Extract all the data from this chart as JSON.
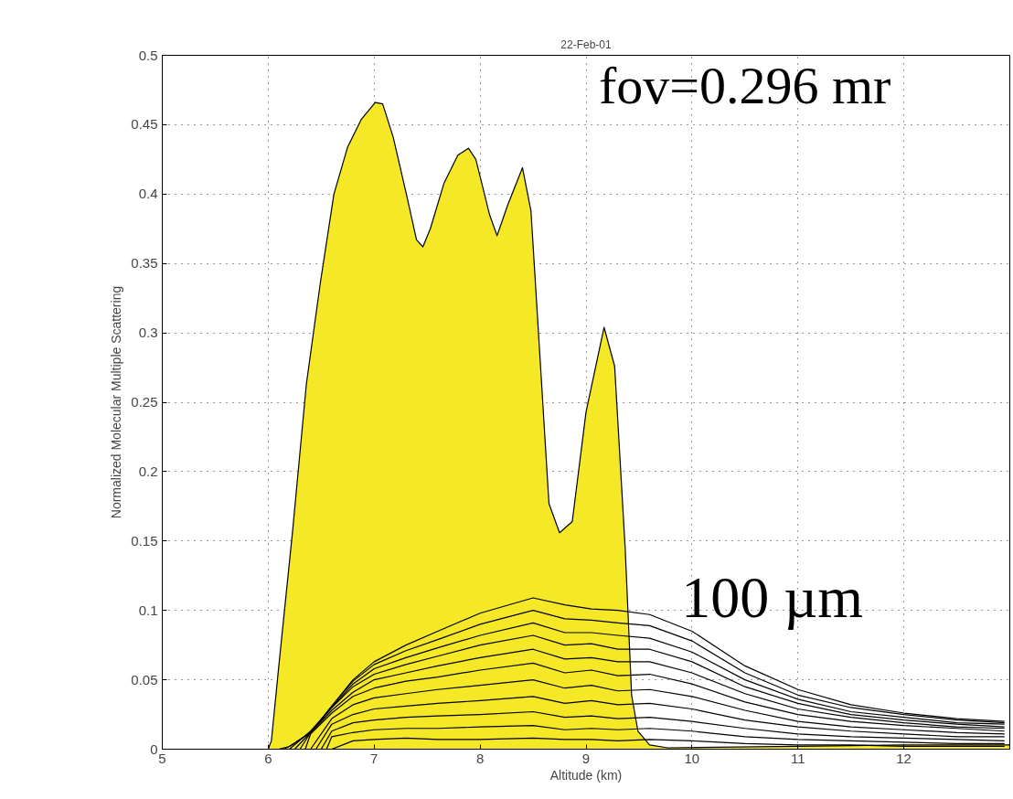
{
  "chart_data": {
    "type": "line",
    "title": "22-Feb-01",
    "xlabel": "Altitude (km)",
    "ylabel": "Normalized Molecular Multiple Scattering",
    "annotations": [
      "fov=0.296 mr",
      "100 µm"
    ],
    "xlim": [
      5,
      13
    ],
    "ylim": [
      0,
      0.5
    ],
    "xticks": [
      5,
      6,
      7,
      8,
      9,
      10,
      11,
      12
    ],
    "yticks": [
      0,
      0.05,
      0.1,
      0.15,
      0.2,
      0.25,
      0.3,
      0.35,
      0.4,
      0.45,
      0.5
    ],
    "grid": true,
    "marker": "none",
    "line_style": "solid",
    "series": [
      {
        "type": "area",
        "color": "#f5e826",
        "x": [
          5,
          6.0,
          6.03,
          6.1,
          6.23,
          6.36,
          6.49,
          6.62,
          6.75,
          6.88,
          7.01,
          7.08,
          7.18,
          7.31,
          7.4,
          7.46,
          7.53,
          7.66,
          7.79,
          7.89,
          7.96,
          8.09,
          8.16,
          8.26,
          8.4,
          8.48,
          8.56,
          8.65,
          8.75,
          8.87,
          9.0,
          9.17,
          9.27,
          9.37,
          9.43,
          9.49,
          9.6,
          9.77,
          11,
          12,
          13
        ],
        "values": [
          0,
          0,
          0.006,
          0.06,
          0.157,
          0.263,
          0.335,
          0.4,
          0.434,
          0.454,
          0.466,
          0.465,
          0.441,
          0.398,
          0.367,
          0.362,
          0.375,
          0.408,
          0.428,
          0.433,
          0.425,
          0.385,
          0.37,
          0.392,
          0.419,
          0.388,
          0.289,
          0.177,
          0.156,
          0.164,
          0.243,
          0.304,
          0.276,
          0.144,
          0.039,
          0.013,
          0.003,
          0.001,
          0.002,
          0.003,
          0.003
        ]
      },
      {
        "color": "#000000",
        "x": [
          6.1,
          6.2,
          6.4,
          6.6,
          6.8,
          7.0,
          7.3,
          7.6,
          8.0,
          8.5,
          8.8,
          9.05,
          9.3,
          9.6,
          10.0,
          10.5,
          11.0,
          11.5,
          12.0,
          12.5,
          12.95
        ],
        "values": [
          0,
          0.002,
          0.012,
          0.031,
          0.05,
          0.063,
          0.075,
          0.085,
          0.098,
          0.109,
          0.104,
          0.101,
          0.1,
          0.097,
          0.085,
          0.06,
          0.043,
          0.032,
          0.026,
          0.022,
          0.02
        ]
      },
      {
        "color": "#000000",
        "x": [
          6.15,
          6.2,
          6.4,
          6.6,
          6.8,
          7.0,
          7.3,
          7.6,
          8.0,
          8.5,
          8.8,
          9.05,
          9.3,
          9.6,
          10.0,
          10.5,
          11.0,
          11.5,
          12.0,
          12.5,
          12.95
        ],
        "values": [
          0,
          0.002,
          0.012,
          0.031,
          0.049,
          0.061,
          0.071,
          0.079,
          0.09,
          0.1,
          0.094,
          0.093,
          0.091,
          0.089,
          0.078,
          0.055,
          0.039,
          0.03,
          0.025,
          0.021,
          0.019
        ]
      },
      {
        "color": "#000000",
        "x": [
          6.2,
          6.4,
          6.6,
          6.8,
          7.0,
          7.3,
          7.6,
          8.0,
          8.5,
          8.8,
          9.05,
          9.3,
          9.6,
          10.0,
          10.5,
          11.0,
          11.5,
          12.0,
          12.5,
          12.95
        ],
        "values": [
          0,
          0.013,
          0.03,
          0.047,
          0.058,
          0.066,
          0.073,
          0.082,
          0.091,
          0.084,
          0.084,
          0.082,
          0.08,
          0.07,
          0.05,
          0.036,
          0.027,
          0.023,
          0.019,
          0.018
        ]
      },
      {
        "color": "#000000",
        "x": [
          6.25,
          6.4,
          6.6,
          6.8,
          7.0,
          7.3,
          7.6,
          8.0,
          8.5,
          8.8,
          9.05,
          9.3,
          9.6,
          10.0,
          10.5,
          11.0,
          11.5,
          12.0,
          12.5,
          12.95
        ],
        "values": [
          0,
          0.012,
          0.03,
          0.045,
          0.054,
          0.061,
          0.067,
          0.075,
          0.082,
          0.075,
          0.076,
          0.072,
          0.072,
          0.063,
          0.045,
          0.033,
          0.025,
          0.021,
          0.018,
          0.016
        ]
      },
      {
        "color": "#000000",
        "x": [
          6.3,
          6.4,
          6.6,
          6.8,
          7.0,
          7.3,
          7.6,
          8.0,
          8.5,
          8.8,
          9.05,
          9.3,
          9.6,
          10.0,
          10.5,
          11.0,
          11.5,
          12.0,
          12.5,
          12.95
        ],
        "values": [
          0,
          0.012,
          0.028,
          0.041,
          0.05,
          0.055,
          0.06,
          0.066,
          0.072,
          0.065,
          0.066,
          0.063,
          0.063,
          0.055,
          0.04,
          0.029,
          0.023,
          0.019,
          0.016,
          0.015
        ]
      },
      {
        "color": "#000000",
        "x": [
          6.35,
          6.4,
          6.6,
          6.8,
          7.0,
          7.3,
          7.6,
          8.0,
          8.5,
          8.8,
          9.05,
          9.3,
          9.6,
          10.0,
          10.5,
          11.0,
          11.5,
          12.0,
          12.5,
          12.95
        ],
        "values": [
          0,
          0.011,
          0.026,
          0.038,
          0.044,
          0.049,
          0.052,
          0.057,
          0.062,
          0.055,
          0.057,
          0.053,
          0.054,
          0.047,
          0.034,
          0.025,
          0.02,
          0.017,
          0.015,
          0.013
        ]
      },
      {
        "color": "#000000",
        "x": [
          6.4,
          6.6,
          6.8,
          7.0,
          7.3,
          7.6,
          8.0,
          8.5,
          8.8,
          9.05,
          9.3,
          9.6,
          10.0,
          10.5,
          11.0,
          11.5,
          12.0,
          12.5,
          12.95
        ],
        "values": [
          0,
          0.022,
          0.032,
          0.037,
          0.04,
          0.043,
          0.046,
          0.05,
          0.044,
          0.046,
          0.042,
          0.043,
          0.038,
          0.028,
          0.02,
          0.016,
          0.014,
          0.012,
          0.011
        ]
      },
      {
        "color": "#000000",
        "x": [
          6.45,
          6.6,
          6.8,
          7.0,
          7.3,
          7.6,
          8.0,
          8.5,
          8.8,
          9.05,
          9.3,
          9.6,
          10.0,
          10.5,
          11.0,
          11.5,
          12.0,
          12.5,
          12.95
        ],
        "values": [
          0,
          0.018,
          0.025,
          0.029,
          0.031,
          0.033,
          0.035,
          0.038,
          0.033,
          0.035,
          0.032,
          0.033,
          0.029,
          0.021,
          0.016,
          0.013,
          0.011,
          0.009,
          0.009
        ]
      },
      {
        "color": "#000000",
        "x": [
          6.5,
          6.6,
          6.8,
          7.0,
          7.3,
          7.6,
          8.0,
          8.5,
          8.8,
          9.05,
          9.3,
          9.6,
          10.0,
          10.5,
          11.0,
          11.5,
          12.0,
          12.5,
          12.95
        ],
        "values": [
          0,
          0.013,
          0.019,
          0.021,
          0.023,
          0.024,
          0.025,
          0.027,
          0.023,
          0.024,
          0.022,
          0.023,
          0.02,
          0.015,
          0.011,
          0.009,
          0.008,
          0.007,
          0.006
        ]
      },
      {
        "color": "#000000",
        "x": [
          6.55,
          6.6,
          6.8,
          7.0,
          7.3,
          7.6,
          8.0,
          8.5,
          8.8,
          9.05,
          9.3,
          9.6,
          10.0,
          10.5,
          11.0,
          11.5,
          12.0,
          12.5,
          12.95
        ],
        "values": [
          0,
          0.009,
          0.012,
          0.014,
          0.015,
          0.015,
          0.016,
          0.017,
          0.014,
          0.015,
          0.014,
          0.015,
          0.013,
          0.009,
          0.007,
          0.006,
          0.005,
          0.004,
          0.004
        ]
      },
      {
        "color": "#000000",
        "x": [
          6.6,
          6.8,
          7.0,
          7.3,
          7.6,
          8.0,
          8.5,
          8.8,
          9.05,
          9.3,
          9.6,
          10.0,
          10.5,
          11.0,
          11.5,
          12.0,
          12.5,
          12.95
        ],
        "values": [
          0,
          0.006,
          0.007,
          0.008,
          0.007,
          0.007,
          0.008,
          0.007,
          0.007,
          0.006,
          0.007,
          0.006,
          0.004,
          0.003,
          0.003,
          0.002,
          0.002,
          0.002
        ]
      }
    ]
  }
}
